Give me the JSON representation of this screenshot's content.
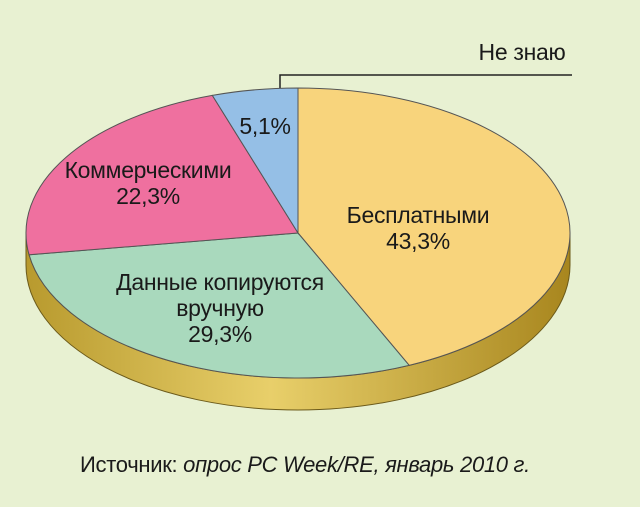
{
  "chart_data": {
    "type": "pie",
    "categories": [
      "Бесплатными",
      "Данные копируются вручную",
      "Коммерческими",
      "Не знаю"
    ],
    "values": [
      43.3,
      29.3,
      22.3,
      5.1
    ],
    "value_labels": [
      "43,3%",
      "29,3%",
      "22,3%",
      "5,1%"
    ],
    "colors": [
      "#f8d47c",
      "#a9d9bd",
      "#ef709f",
      "#95bfe6"
    ],
    "source_prefix": "Источник:",
    "source": "опрос PC Week/RE, январь 2010 г."
  }
}
